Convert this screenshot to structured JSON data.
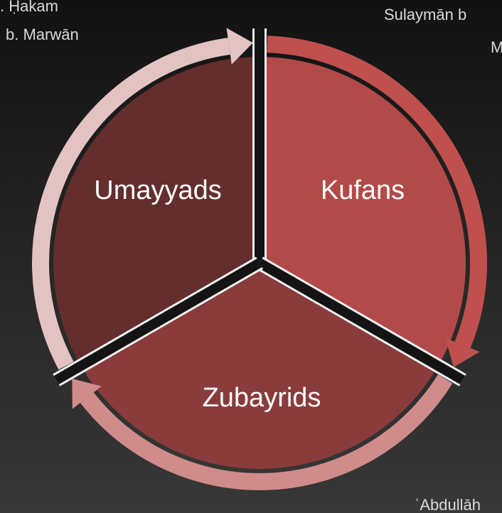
{
  "segments": [
    {
      "label": "Umayyads"
    },
    {
      "label": "Kufans"
    },
    {
      "label": "Zubayrids"
    }
  ],
  "annotations": [
    ". Ḥakam",
    "b. Marwān",
    "Sulaymān b",
    "M",
    "ʿAbdullāh"
  ]
}
